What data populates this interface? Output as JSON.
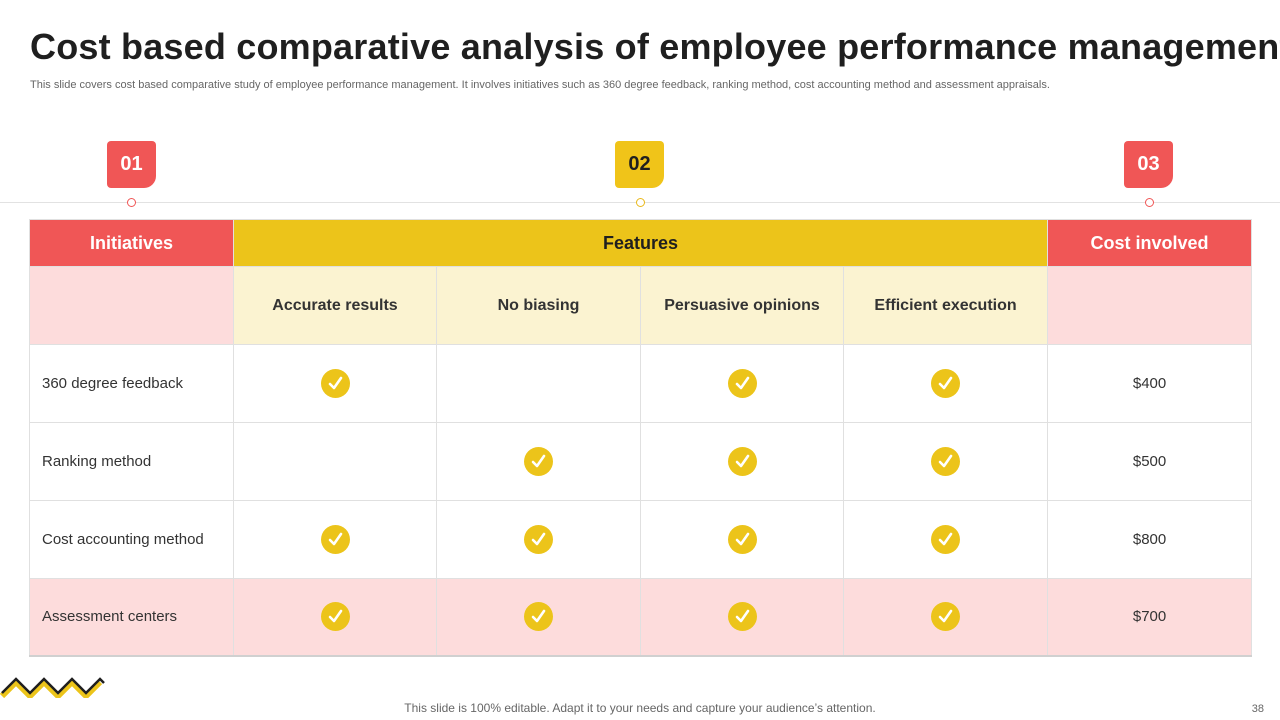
{
  "slide": {
    "title": "Cost based comparative analysis of employee performance management",
    "subtitle": "This slide covers cost based comparative study of employee performance management. It involves initiatives such as 360 degree feedback, ranking method, cost accounting method and assessment appraisals.",
    "badges": [
      "01",
      "02",
      "03"
    ],
    "footer": "This slide is 100% editable. Adapt it to your needs and capture your audience’s attention.",
    "page_number": "38"
  },
  "table": {
    "headers": {
      "initiatives": "Initiatives",
      "features": "Features",
      "cost": "Cost involved"
    },
    "features": [
      "Accurate results",
      "No biasing",
      "Persuasive opinions",
      "Efficient execution"
    ],
    "rows": [
      {
        "label": "360 degree feedback",
        "checks": [
          true,
          false,
          true,
          true
        ],
        "cost": "$400"
      },
      {
        "label": "Ranking method",
        "checks": [
          false,
          true,
          true,
          true
        ],
        "cost": "$500"
      },
      {
        "label": "Cost accounting method",
        "checks": [
          true,
          true,
          true,
          true
        ],
        "cost": "$800"
      },
      {
        "label": "Assessment centers",
        "checks": [
          true,
          true,
          true,
          true
        ],
        "cost": "$700"
      }
    ]
  },
  "colors": {
    "red": "#f05656",
    "yellow": "#ecc41a",
    "pink": "#fddcdc",
    "cream": "#fbf3d1"
  }
}
